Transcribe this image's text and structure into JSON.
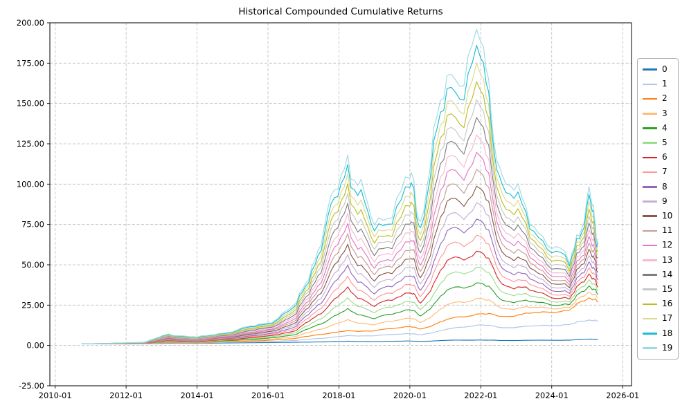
{
  "chart_data": {
    "type": "line",
    "title": "Historical Compounded Cumulative Returns",
    "xlabel": "",
    "ylabel": "",
    "grid": true,
    "legend_position": "right-outside",
    "xlim": [
      2009.85,
      2026.25
    ],
    "ylim": [
      -25,
      200
    ],
    "x_tick_labels": [
      "2010-01",
      "2012-01",
      "2014-01",
      "2016-01",
      "2018-01",
      "2020-01",
      "2022-01",
      "2024-01",
      "2026-01"
    ],
    "y_tick_labels": [
      "-25.00",
      "0.00",
      "25.00",
      "50.00",
      "75.00",
      "100.00",
      "125.00",
      "150.00",
      "175.00",
      "200.00"
    ],
    "x": [
      2010.75,
      2011.5,
      2012.5,
      2013.2,
      2014.0,
      2015.0,
      2016.0,
      2016.8,
      2017.5,
      2018.25,
      2019.0,
      2020.0,
      2020.3,
      2021.05,
      2022.0,
      2022.6,
      2023.5,
      2024.5,
      2025.05,
      2025.3
    ],
    "series": [
      {
        "name": "0",
        "color": "#1f77b4",
        "values": [
          1.0,
          1.0,
          1.1,
          1.3,
          1.3,
          1.6,
          1.8,
          2.0,
          2.2,
          2.6,
          2.4,
          2.8,
          2.5,
          3.2,
          3.4,
          3.1,
          3.2,
          3.3,
          4.0,
          3.8
        ]
      },
      {
        "name": "1",
        "color": "#aec7e8",
        "values": [
          1.0,
          1.02,
          1.15,
          1.6,
          1.5,
          2.0,
          2.4,
          3.2,
          4.5,
          6.0,
          6.0,
          7.5,
          6.5,
          10.0,
          13.0,
          11.0,
          12.0,
          13.0,
          16.0,
          15.0
        ]
      },
      {
        "name": "2",
        "color": "#ff7f0e",
        "values": [
          1.0,
          1.03,
          1.19,
          1.9,
          1.7,
          2.4,
          3.1,
          4.5,
          7.0,
          9.0,
          9.0,
          12.0,
          10.0,
          16.0,
          20.0,
          18.0,
          20.0,
          22.0,
          30.0,
          27.0
        ]
      },
      {
        "name": "3",
        "color": "#ffbb78",
        "values": [
          1.0,
          1.05,
          1.24,
          2.2,
          1.9,
          2.8,
          3.7,
          5.7,
          10.4,
          15.5,
          12.7,
          17.5,
          14.0,
          24.9,
          29.8,
          23.1,
          23.3,
          23.6,
          33.8,
          29.3
        ]
      },
      {
        "name": "4",
        "color": "#2ca02c",
        "values": [
          1.0,
          1.06,
          1.29,
          2.5,
          2.1,
          3.2,
          4.4,
          6.9,
          13.8,
          22.1,
          16.4,
          22.9,
          18.0,
          33.8,
          39.5,
          28.2,
          26.6,
          25.3,
          37.6,
          31.6
        ]
      },
      {
        "name": "5",
        "color": "#98df8a",
        "values": [
          1.0,
          1.08,
          1.34,
          2.8,
          2.3,
          3.6,
          5.0,
          8.1,
          17.2,
          28.6,
          20.1,
          28.4,
          22.0,
          42.6,
          49.3,
          33.4,
          29.9,
          26.9,
          41.5,
          33.9
        ]
      },
      {
        "name": "6",
        "color": "#d62728",
        "values": [
          1.0,
          1.09,
          1.38,
          3.1,
          2.5,
          3.9,
          5.7,
          9.3,
          20.6,
          35.1,
          23.8,
          33.9,
          26.0,
          51.5,
          59.1,
          38.5,
          33.2,
          28.6,
          45.3,
          36.2
        ]
      },
      {
        "name": "7",
        "color": "#ff9896",
        "values": [
          1.0,
          1.11,
          1.43,
          3.4,
          2.7,
          4.3,
          6.3,
          10.5,
          24.1,
          41.6,
          27.5,
          39.4,
          30.0,
          60.4,
          68.8,
          43.6,
          36.5,
          30.2,
          49.1,
          38.5
        ]
      },
      {
        "name": "8",
        "color": "#9467bd",
        "values": [
          1.0,
          1.13,
          1.48,
          3.7,
          2.9,
          4.7,
          6.9,
          11.7,
          27.5,
          48.2,
          31.2,
          44.8,
          34.0,
          69.3,
          78.6,
          48.7,
          39.8,
          31.9,
          52.9,
          40.8
        ]
      },
      {
        "name": "9",
        "color": "#c5b0d5",
        "values": [
          1.0,
          1.14,
          1.53,
          4.0,
          3.1,
          5.1,
          7.6,
          12.9,
          30.9,
          54.7,
          35.0,
          50.3,
          38.0,
          78.2,
          88.4,
          53.8,
          43.1,
          33.5,
          56.8,
          43.1
        ]
      },
      {
        "name": "10",
        "color": "#8c564b",
        "values": [
          1.0,
          1.16,
          1.57,
          4.3,
          3.3,
          5.5,
          8.2,
          14.1,
          34.3,
          61.2,
          38.7,
          55.8,
          42.0,
          87.1,
          98.1,
          58.9,
          46.4,
          35.2,
          60.6,
          45.4
        ]
      },
      {
        "name": "11",
        "color": "#c49c94",
        "values": [
          1.0,
          1.17,
          1.62,
          4.6,
          3.4,
          5.9,
          8.9,
          15.4,
          37.7,
          67.8,
          42.4,
          61.2,
          46.0,
          95.9,
          107.9,
          64.1,
          49.6,
          36.8,
          64.4,
          47.6
        ]
      },
      {
        "name": "12",
        "color": "#e377c2",
        "values": [
          1.0,
          1.19,
          1.67,
          4.9,
          3.6,
          6.3,
          9.5,
          16.6,
          41.1,
          74.3,
          46.1,
          66.7,
          50.0,
          104.8,
          117.6,
          69.2,
          52.9,
          38.5,
          68.2,
          49.9
        ]
      },
      {
        "name": "13",
        "color": "#f7b6d2",
        "values": [
          1.0,
          1.21,
          1.72,
          5.2,
          3.8,
          6.7,
          10.2,
          17.8,
          44.5,
          80.8,
          49.8,
          72.2,
          54.0,
          113.7,
          127.4,
          74.3,
          56.2,
          40.1,
          72.1,
          52.2
        ]
      },
      {
        "name": "14",
        "color": "#7f7f7f",
        "values": [
          1.0,
          1.22,
          1.76,
          5.5,
          4.0,
          7.0,
          10.8,
          19.0,
          47.9,
          87.4,
          53.5,
          77.6,
          58.0,
          122.6,
          137.2,
          79.4,
          59.5,
          41.8,
          75.9,
          54.5
        ]
      },
      {
        "name": "15",
        "color": "#c7c7c7",
        "values": [
          1.0,
          1.24,
          1.81,
          5.8,
          4.2,
          7.4,
          11.4,
          20.2,
          51.4,
          93.9,
          57.2,
          83.1,
          62.0,
          131.5,
          146.9,
          84.5,
          62.8,
          43.4,
          79.7,
          56.8
        ]
      },
      {
        "name": "16",
        "color": "#bcbd22",
        "values": [
          1.0,
          1.25,
          1.86,
          6.1,
          4.4,
          7.8,
          12.1,
          21.4,
          54.8,
          100.4,
          60.9,
          88.6,
          66.0,
          140.4,
          156.7,
          89.6,
          66.1,
          45.1,
          83.5,
          59.1
        ]
      },
      {
        "name": "17",
        "color": "#dbdb8d",
        "values": [
          1.0,
          1.27,
          1.91,
          6.4,
          4.6,
          8.2,
          12.7,
          22.6,
          58.2,
          106.9,
          64.6,
          94.1,
          70.0,
          149.2,
          166.5,
          94.8,
          69.4,
          46.7,
          87.4,
          61.4
        ]
      },
      {
        "name": "18",
        "color": "#17becf",
        "values": [
          1.0,
          1.28,
          1.95,
          6.7,
          4.8,
          8.6,
          13.4,
          23.8,
          61.6,
          113.5,
          68.3,
          99.5,
          74.0,
          158.1,
          176.2,
          99.9,
          72.7,
          48.4,
          91.2,
          63.7
        ]
      },
      {
        "name": "19",
        "color": "#9edae5",
        "values": [
          1.0,
          1.3,
          2.0,
          7.0,
          5.0,
          9.0,
          14.0,
          25.0,
          65.0,
          120.0,
          72.0,
          105.0,
          78.0,
          167.0,
          186.0,
          105.0,
          76.0,
          50.0,
          95.0,
          66.0
        ]
      }
    ]
  },
  "style": {
    "grid_color": "#b8b8b8",
    "axis_color": "#000000",
    "background": "#ffffff"
  }
}
